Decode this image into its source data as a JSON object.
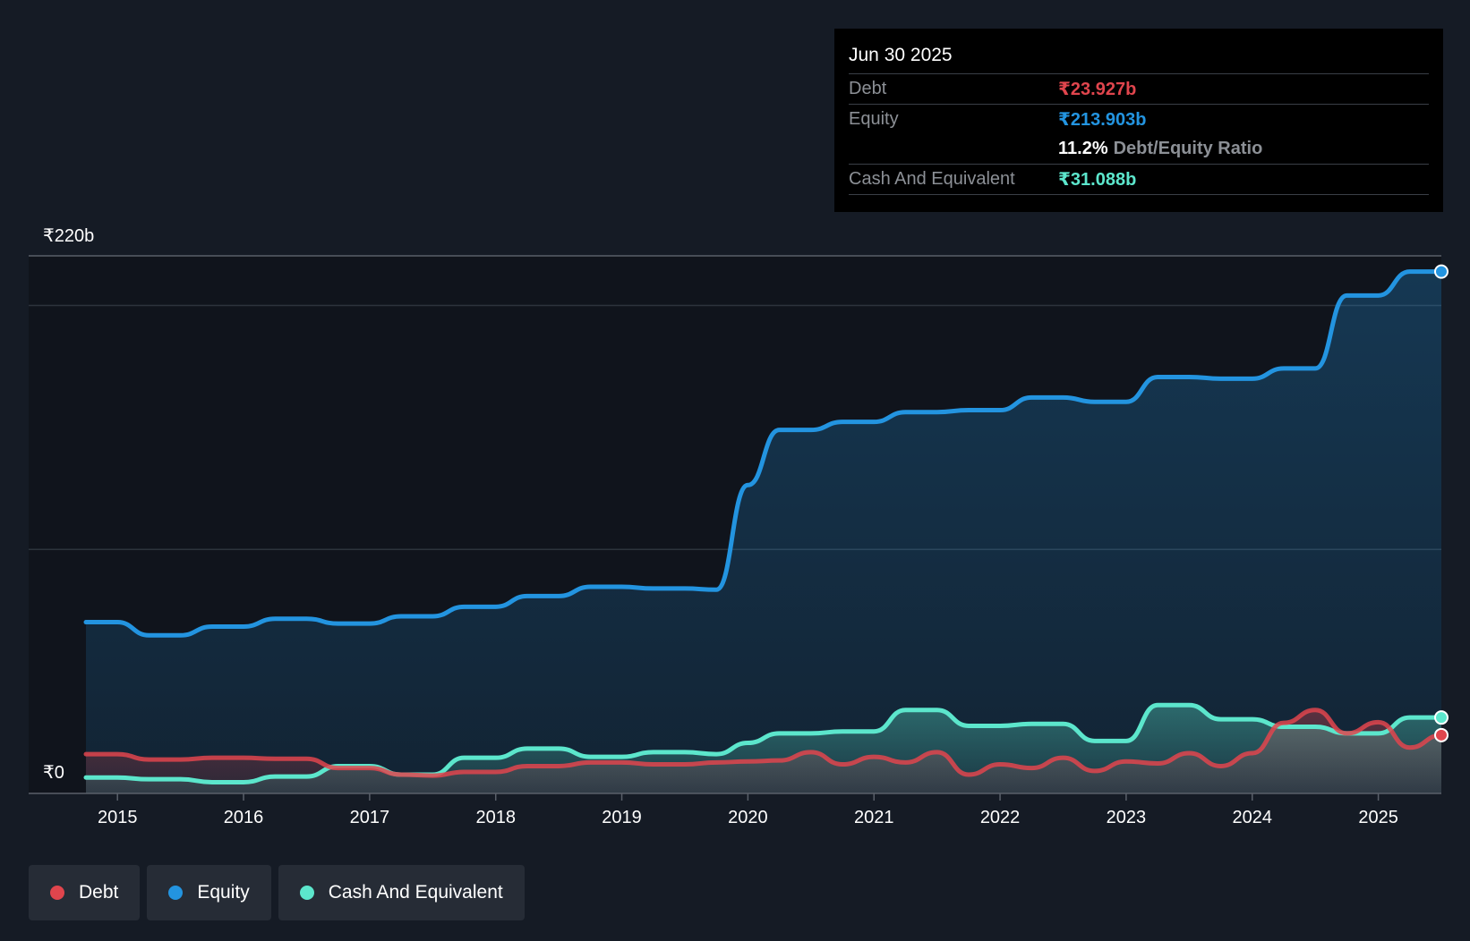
{
  "colors": {
    "background": "#151b25",
    "plot_background": "#10141c",
    "debt": "#e0454d",
    "equity": "#2394e0",
    "cash": "#5ce6cc",
    "grid": "#2d333c"
  },
  "tooltip": {
    "date": "Jun 30 2025",
    "debt_label": "Debt",
    "debt_value": "₹23.927b",
    "equity_label": "Equity",
    "equity_value": "₹213.903b",
    "ratio_value": "11.2%",
    "ratio_label": "Debt/Equity Ratio",
    "cash_label": "Cash And Equivalent",
    "cash_value": "₹31.088b"
  },
  "legend": [
    {
      "label": "Debt",
      "color_key": "debt"
    },
    {
      "label": "Equity",
      "color_key": "equity"
    },
    {
      "label": "Cash And Equivalent",
      "color_key": "cash"
    }
  ],
  "chart_data": {
    "type": "area",
    "title": "",
    "xlabel": "",
    "ylabel": "",
    "y_top_label": "₹220b",
    "y_bottom_label": "₹0",
    "ylim": [
      0,
      220
    ],
    "xlim": [
      2014.75,
      2025.5
    ],
    "x_ticks": [
      2015,
      2016,
      2017,
      2018,
      2019,
      2020,
      2021,
      2022,
      2023,
      2024,
      2025
    ],
    "x_tick_labels": [
      "2015",
      "2016",
      "2017",
      "2018",
      "2019",
      "2020",
      "2021",
      "2022",
      "2023",
      "2024",
      "2025"
    ],
    "gridline_values": [
      200,
      100
    ],
    "series": [
      {
        "name": "Equity",
        "color_key": "equity",
        "points": [
          [
            2014.75,
            70.2
          ],
          [
            2015.0,
            70.2
          ],
          [
            2015.25,
            64.8
          ],
          [
            2015.5,
            64.8
          ],
          [
            2015.75,
            68.4
          ],
          [
            2016.0,
            68.4
          ],
          [
            2016.25,
            71.6
          ],
          [
            2016.5,
            71.6
          ],
          [
            2016.75,
            69.6
          ],
          [
            2017.0,
            69.6
          ],
          [
            2017.25,
            72.6
          ],
          [
            2017.5,
            72.6
          ],
          [
            2017.75,
            76.5
          ],
          [
            2018.0,
            76.5
          ],
          [
            2018.25,
            80.9
          ],
          [
            2018.5,
            80.9
          ],
          [
            2018.75,
            84.7
          ],
          [
            2019.0,
            84.7
          ],
          [
            2019.25,
            84.0
          ],
          [
            2019.5,
            84.0
          ],
          [
            2019.75,
            83.5
          ],
          [
            2020.0,
            126.4
          ],
          [
            2020.25,
            149.0
          ],
          [
            2020.5,
            149.0
          ],
          [
            2020.75,
            152.3
          ],
          [
            2021.0,
            152.3
          ],
          [
            2021.25,
            156.3
          ],
          [
            2021.5,
            156.3
          ],
          [
            2021.75,
            157.1
          ],
          [
            2022.0,
            157.1
          ],
          [
            2022.25,
            162.3
          ],
          [
            2022.5,
            162.3
          ],
          [
            2022.75,
            160.5
          ],
          [
            2023.0,
            160.5
          ],
          [
            2023.25,
            170.7
          ],
          [
            2023.5,
            170.7
          ],
          [
            2023.75,
            170.0
          ],
          [
            2024.0,
            170.0
          ],
          [
            2024.25,
            174.2
          ],
          [
            2024.5,
            174.2
          ],
          [
            2024.75,
            204.1
          ],
          [
            2025.0,
            204.1
          ],
          [
            2025.25,
            213.9
          ],
          [
            2025.5,
            213.9
          ]
        ]
      },
      {
        "name": "Debt",
        "color_key": "debt",
        "points": [
          [
            2014.75,
            16.1
          ],
          [
            2015.0,
            16.1
          ],
          [
            2015.25,
            13.9
          ],
          [
            2015.5,
            13.9
          ],
          [
            2015.75,
            14.6
          ],
          [
            2016.0,
            14.6
          ],
          [
            2016.25,
            14.2
          ],
          [
            2016.5,
            14.2
          ],
          [
            2016.75,
            10.4
          ],
          [
            2017.0,
            10.4
          ],
          [
            2017.25,
            7.7
          ],
          [
            2017.5,
            7.3
          ],
          [
            2017.75,
            8.8
          ],
          [
            2018.0,
            8.8
          ],
          [
            2018.25,
            11.2
          ],
          [
            2018.5,
            11.2
          ],
          [
            2018.75,
            12.7
          ],
          [
            2019.0,
            12.7
          ],
          [
            2019.25,
            11.9
          ],
          [
            2019.5,
            11.9
          ],
          [
            2019.75,
            12.7
          ],
          [
            2020.0,
            13.1
          ],
          [
            2020.25,
            13.5
          ],
          [
            2020.5,
            16.9
          ],
          [
            2020.75,
            11.9
          ],
          [
            2021.0,
            15.0
          ],
          [
            2021.25,
            12.7
          ],
          [
            2021.5,
            16.9
          ],
          [
            2021.75,
            7.7
          ],
          [
            2022.0,
            11.9
          ],
          [
            2022.25,
            10.4
          ],
          [
            2022.5,
            14.6
          ],
          [
            2022.75,
            9.2
          ],
          [
            2023.0,
            13.1
          ],
          [
            2023.25,
            12.3
          ],
          [
            2023.5,
            16.5
          ],
          [
            2023.75,
            11.2
          ],
          [
            2024.0,
            16.5
          ],
          [
            2024.25,
            28.9
          ],
          [
            2024.5,
            34.2
          ],
          [
            2024.75,
            24.6
          ],
          [
            2025.0,
            29.2
          ],
          [
            2025.25,
            18.8
          ],
          [
            2025.5,
            23.9
          ]
        ]
      },
      {
        "name": "Cash And Equivalent",
        "color_key": "cash",
        "points": [
          [
            2014.75,
            6.5
          ],
          [
            2015.0,
            6.5
          ],
          [
            2015.25,
            5.8
          ],
          [
            2015.5,
            5.8
          ],
          [
            2015.75,
            4.6
          ],
          [
            2016.0,
            4.6
          ],
          [
            2016.25,
            6.9
          ],
          [
            2016.5,
            6.9
          ],
          [
            2016.75,
            11.2
          ],
          [
            2017.0,
            11.2
          ],
          [
            2017.25,
            7.7
          ],
          [
            2017.5,
            7.7
          ],
          [
            2017.75,
            14.6
          ],
          [
            2018.0,
            14.6
          ],
          [
            2018.25,
            18.4
          ],
          [
            2018.5,
            18.4
          ],
          [
            2018.75,
            15.0
          ],
          [
            2019.0,
            15.0
          ],
          [
            2019.25,
            16.9
          ],
          [
            2019.5,
            16.9
          ],
          [
            2019.75,
            16.1
          ],
          [
            2020.0,
            20.7
          ],
          [
            2020.25,
            24.6
          ],
          [
            2020.5,
            24.6
          ],
          [
            2020.75,
            25.4
          ],
          [
            2021.0,
            25.4
          ],
          [
            2021.25,
            34.2
          ],
          [
            2021.5,
            34.2
          ],
          [
            2021.75,
            27.7
          ],
          [
            2022.0,
            27.7
          ],
          [
            2022.25,
            28.5
          ],
          [
            2022.5,
            28.5
          ],
          [
            2022.75,
            21.5
          ],
          [
            2023.0,
            21.5
          ],
          [
            2023.25,
            36.2
          ],
          [
            2023.5,
            36.2
          ],
          [
            2023.75,
            30.4
          ],
          [
            2024.0,
            30.4
          ],
          [
            2024.25,
            27.3
          ],
          [
            2024.5,
            27.3
          ],
          [
            2024.75,
            24.6
          ],
          [
            2025.0,
            24.6
          ],
          [
            2025.25,
            31.1
          ],
          [
            2025.5,
            31.1
          ]
        ]
      }
    ]
  }
}
